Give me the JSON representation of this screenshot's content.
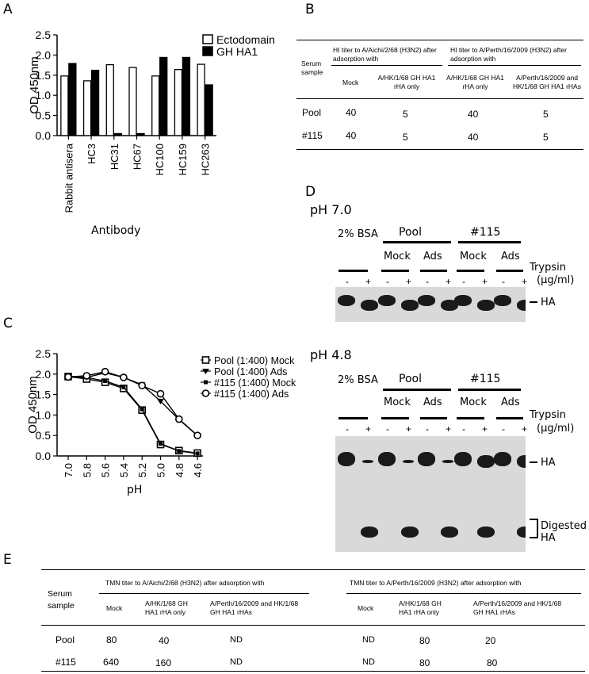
{
  "panels": {
    "a": "A",
    "b": "B",
    "c": "C",
    "d": "D",
    "e": "E"
  },
  "chart_data": [
    {
      "type": "bar",
      "ylabel": "OD 450nm",
      "xlabel": "Antibody",
      "ylim": [
        0,
        2.5
      ],
      "yticks": [
        "0.0",
        "0.5",
        "1.0",
        "1.5",
        "2.0",
        "2.5"
      ],
      "categories": [
        "Rabbit antisera",
        "HC3",
        "HC31",
        "HC67",
        "HC100",
        "HC159",
        "HC263"
      ],
      "series": [
        {
          "name": "Ectodomain",
          "color": "#ffffff",
          "values": [
            1.48,
            1.36,
            1.76,
            1.69,
            1.48,
            1.64,
            1.77
          ]
        },
        {
          "name": "GH HA1",
          "color": "#000000",
          "values": [
            1.79,
            1.62,
            0.05,
            0.05,
            1.94,
            1.94,
            1.26
          ]
        }
      ],
      "legend_position": "top-right"
    },
    {
      "type": "line",
      "ylabel": "OD 450nm",
      "xlabel": "pH",
      "ylim": [
        0,
        2.5
      ],
      "yticks": [
        "0.0",
        "0.5",
        "1.0",
        "1.5",
        "2.0",
        "2.5"
      ],
      "x": [
        "7.0",
        "5.8",
        "5.6",
        "5.4",
        "5.2",
        "5.0",
        "4.8",
        "4.6"
      ],
      "series": [
        {
          "name": "Pool (1:400) Mock",
          "marker": "square",
          "values": [
            1.94,
            1.88,
            1.8,
            1.65,
            1.12,
            0.28,
            0.13,
            0.07
          ]
        },
        {
          "name": "Pool (1:400) Ads",
          "marker": "triangle-down",
          "values": [
            1.93,
            1.92,
            2.03,
            1.92,
            1.74,
            1.34,
            0.89,
            0.5
          ]
        },
        {
          "name": "#115 (1:400) Mock",
          "marker": "small-square",
          "values": [
            1.95,
            1.92,
            1.83,
            1.68,
            1.14,
            0.3,
            0.12,
            0.06
          ]
        },
        {
          "name": "#115 (1:400) Ads",
          "marker": "circle",
          "values": [
            1.93,
            1.96,
            2.06,
            1.92,
            1.72,
            1.52,
            0.9,
            0.5
          ]
        }
      ],
      "legend_position": "top-right"
    }
  ],
  "table_b": {
    "col1": "Serum sample",
    "group1": "HI titer to A/Aichi/2/68 (H3N2) after adsorption with",
    "group2": "HI titer to A/Perth/16/2009 (H3N2) after adsorption with",
    "subheaders": [
      "Mock",
      "A/HK/1/68 GH HA1 rHA only",
      "A/HK/1/68 GH HA1 rHA only",
      "A/Perth/16/2009 and HK/1/68 GH HA1 rHAs"
    ],
    "rows": [
      {
        "label": "Pool",
        "vals": [
          "40",
          "5",
          "40",
          "5"
        ]
      },
      {
        "label": "#115",
        "vals": [
          "40",
          "5",
          "40",
          "5"
        ]
      }
    ]
  },
  "blot": {
    "ph7": "pH 7.0",
    "ph48": "pH 4.8",
    "bsa": "2% BSA",
    "pool": "Pool",
    "s115": "#115",
    "mock": "Mock",
    "ads": "Ads",
    "trypsin": "Trypsin",
    "unit": "(µg/ml)",
    "minus": "-",
    "plus": "+",
    "ha": "HA",
    "digested1": "Digested",
    "digested2": "HA"
  },
  "table_e": {
    "col1": "Serum sample",
    "group1": "TMN titer to A/Aichi/2/68 (H3N2) after adsorption with",
    "group2": "TMN titer to A/Perth/16/2009 (H3N2) after adsorption with",
    "subheaders": [
      "Mock",
      "A/HK/1/68 GH HA1 rHA only",
      "A/Perth/16/2009 and HK/1/68 GH HA1 rHAs",
      "Mock",
      "A/HK/1/68 GH HA1 rHA only",
      "A/Perth/16/2009 and HK/1/68 GH HA1 rHAs"
    ],
    "rows": [
      {
        "label": "Pool",
        "vals": [
          "80",
          "40",
          "ND",
          "ND",
          "80",
          "20"
        ]
      },
      {
        "label": "#115",
        "vals": [
          "640",
          "160",
          "ND",
          "ND",
          "80",
          "80"
        ]
      }
    ]
  }
}
